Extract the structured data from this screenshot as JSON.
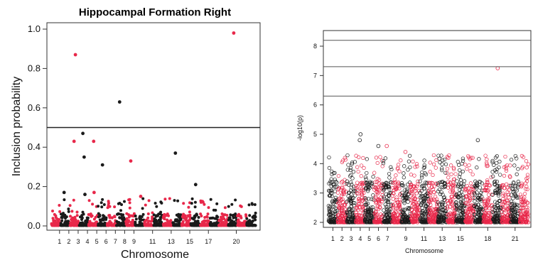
{
  "colors": {
    "black": "#1a1a1a",
    "red": "#e8284a",
    "axis": "#333333"
  },
  "chart_data": [
    {
      "type": "scatter",
      "title": "Hippocampal Formation Right",
      "xlabel": "Chromosome",
      "ylabel": "Inclusion probability",
      "ylim": [
        0,
        1.0
      ],
      "y_ticks": [
        "0.0",
        "0.2",
        "0.4",
        "0.6",
        "0.8",
        "1.0"
      ],
      "x_tick_labels": [
        "1",
        "2",
        "3",
        "4",
        "5",
        "6",
        "7",
        "8",
        "9",
        "11",
        "13",
        "15",
        "17",
        "20"
      ],
      "threshold": 0.5,
      "highlight_points": [
        {
          "chromosome": 3,
          "y": 0.87,
          "color": "red"
        },
        {
          "chromosome": 20,
          "y": 0.98,
          "color": "red"
        },
        {
          "chromosome": 8,
          "y": 0.63,
          "color": "black"
        },
        {
          "chromosome": 4,
          "y": 0.47,
          "color": "black"
        },
        {
          "chromosome": 3,
          "y": 0.43,
          "color": "red"
        },
        {
          "chromosome": 5,
          "y": 0.43,
          "color": "red"
        },
        {
          "chromosome": 4,
          "y": 0.35,
          "color": "black"
        },
        {
          "chromosome": 14,
          "y": 0.37,
          "color": "black"
        },
        {
          "chromosome": 9,
          "y": 0.33,
          "color": "red"
        },
        {
          "chromosome": 6,
          "y": 0.31,
          "color": "black"
        },
        {
          "chromosome": 16,
          "y": 0.21,
          "color": "black"
        },
        {
          "chromosome": 5,
          "y": 0.17,
          "color": "red"
        },
        {
          "chromosome": 2,
          "y": 0.17,
          "color": "black"
        },
        {
          "chromosome": 4,
          "y": 0.16,
          "color": "black"
        },
        {
          "chromosome": 10,
          "y": 0.15,
          "color": "red"
        }
      ]
    },
    {
      "type": "scatter",
      "xlabel": "Chromosome",
      "ylabel": "-log10(p)",
      "ylim": [
        1.8,
        8.4
      ],
      "y_ticks": [
        "2",
        "3",
        "4",
        "5",
        "6",
        "7",
        "8"
      ],
      "x_tick_labels": [
        "1",
        "2",
        "3",
        "4",
        "5",
        "6",
        "7",
        "9",
        "11",
        "13",
        "15",
        "18",
        "21"
      ],
      "threshold_lines": [
        8.2,
        7.3,
        6.3
      ],
      "highlight_points": [
        {
          "chromosome": 19,
          "y": 7.25,
          "color": "red"
        },
        {
          "chromosome": 4,
          "y": 5.0,
          "color": "black"
        },
        {
          "chromosome": 4,
          "y": 4.8,
          "color": "black"
        },
        {
          "chromosome": 17,
          "y": 4.8,
          "color": "black"
        },
        {
          "chromosome": 7,
          "y": 4.6,
          "color": "red"
        },
        {
          "chromosome": 6,
          "y": 4.6,
          "color": "black"
        },
        {
          "chromosome": 9,
          "y": 4.4,
          "color": "red"
        }
      ]
    }
  ]
}
